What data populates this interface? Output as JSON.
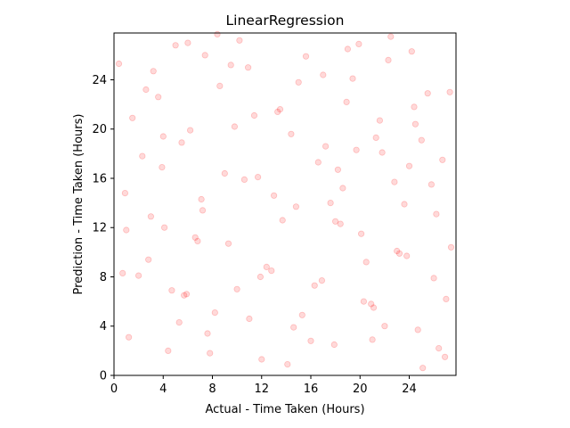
{
  "chart_data": {
    "type": "scatter",
    "title": "LinearRegression",
    "xlabel": "Actual - Time Taken (Hours)",
    "ylabel": "Prediction - Time Taken (Hours)",
    "xlim": [
      0,
      27.8
    ],
    "ylim": [
      0,
      27.8
    ],
    "xticks": [
      0,
      4,
      8,
      12,
      16,
      20,
      24
    ],
    "yticks": [
      0,
      4,
      8,
      12,
      16,
      20,
      24
    ],
    "grid": false,
    "legend": "none",
    "marker_color": "#ff0000",
    "marker_alpha": 0.15,
    "series": [
      {
        "x": [
          0.4,
          1.2,
          2.3,
          2.8,
          3.6,
          4.1,
          5.0,
          5.7,
          6.2,
          7.1,
          7.8,
          8.6,
          9.3,
          10.2,
          11.0,
          11.7,
          12.4,
          13.3,
          14.1,
          14.8,
          15.6,
          16.3,
          17.2,
          17.9,
          18.6,
          19.4,
          20.1,
          20.9,
          21.6,
          22.5,
          23.2,
          24.0,
          24.7,
          25.5,
          26.2,
          27.0,
          0.9,
          2.0,
          3.2,
          4.4,
          5.5,
          6.6,
          7.4,
          8.2,
          9.8,
          10.6,
          12.0,
          13.7,
          15.0,
          16.9,
          18.2,
          19.0,
          20.5,
          21.3,
          22.0,
          23.6,
          24.4,
          25.1,
          26.7,
          27.4,
          1.5,
          3.0,
          4.7,
          6.0,
          7.6,
          9.0,
          10.9,
          12.8,
          14.4,
          16.0,
          17.6,
          18.9,
          20.3,
          21.8,
          23.0,
          24.2,
          25.8,
          26.9,
          0.7,
          2.6,
          3.9,
          5.3,
          6.8,
          8.4,
          10.0,
          11.4,
          13.0,
          14.6,
          17.0,
          18.4,
          19.7,
          21.1,
          22.3,
          23.8,
          25.0,
          26.4,
          1.0,
          4.0,
          5.9,
          7.2,
          9.5,
          11.9,
          13.5,
          15.3,
          16.6,
          18.0,
          19.9,
          21.0,
          22.8,
          24.5,
          26.0,
          27.3
        ],
        "y": [
          25.3,
          3.1,
          17.8,
          9.4,
          22.6,
          12.0,
          26.8,
          6.5,
          19.9,
          14.3,
          1.8,
          23.5,
          10.7,
          27.2,
          4.6,
          16.1,
          8.8,
          21.4,
          0.9,
          13.7,
          25.9,
          7.3,
          18.6,
          2.5,
          15.2,
          24.1,
          11.5,
          5.8,
          20.7,
          27.5,
          9.9,
          17.0,
          3.7,
          22.9,
          13.1,
          6.2,
          14.8,
          8.1,
          24.7,
          2.0,
          18.9,
          11.2,
          26.0,
          5.1,
          20.2,
          15.9,
          1.3,
          12.6,
          23.8,
          7.7,
          16.7,
          26.5,
          9.2,
          19.3,
          4.0,
          13.9,
          21.8,
          0.6,
          17.5,
          10.4,
          20.9,
          12.9,
          6.9,
          27.0,
          3.4,
          16.4,
          25.0,
          8.5,
          19.6,
          2.8,
          14.0,
          22.2,
          6.0,
          18.1,
          10.1,
          26.3,
          15.5,
          1.5,
          8.3,
          23.2,
          16.9,
          4.3,
          10.9,
          27.7,
          7.0,
          21.1,
          14.6,
          3.9,
          24.4,
          12.3,
          18.3,
          5.5,
          25.6,
          9.7,
          19.1,
          2.2,
          11.8,
          19.4,
          6.6,
          13.4,
          25.2,
          8.0,
          21.6,
          4.9,
          17.3,
          12.5,
          26.9,
          2.9,
          15.7,
          20.4,
          7.9,
          23.0
        ]
      }
    ]
  }
}
